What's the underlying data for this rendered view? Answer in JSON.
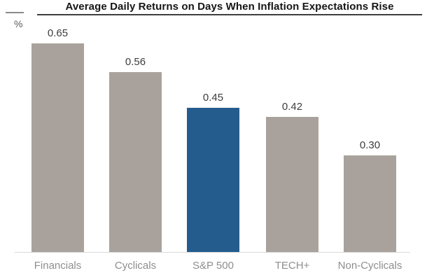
{
  "chart_data": {
    "type": "bar",
    "title": "Average Daily Returns on Days When Inflation Expectations Rise",
    "ylabel": "%",
    "categories": [
      "Financials",
      "Cyclicals",
      "S&P 500",
      "TECH+",
      "Non-Cyclicals"
    ],
    "values": [
      0.65,
      0.56,
      0.45,
      0.42,
      0.3
    ],
    "value_labels": [
      "0.65",
      "0.56",
      "0.45",
      "0.42",
      "0.30"
    ],
    "highlight_index": 2,
    "ylim": [
      0,
      0.7
    ],
    "grid": false,
    "legend": "none",
    "xlabel": ""
  },
  "colors": {
    "bar_default": "#a9a29c",
    "bar_highlight": "#255c8e",
    "title_text": "#161616",
    "title_rule": "#3f3f3f",
    "value_label": "#3c3c3c",
    "category_label": "#8e8e8e",
    "axis_line": "#d9d9d9",
    "unit_label": "#5a5a5a",
    "background": "#ffffff"
  }
}
